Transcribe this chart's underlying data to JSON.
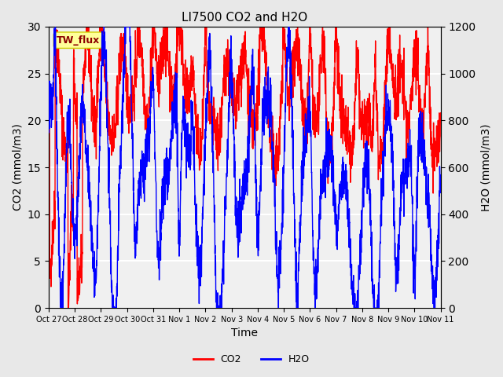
{
  "title": "LI7500 CO2 and H2O",
  "xlabel": "Time",
  "ylabel_left": "CO2 (mmol/m3)",
  "ylabel_right": "H2O (mmol/m3)",
  "annotation": "TW_flux",
  "ylim_left": [
    0,
    30
  ],
  "ylim_right": [
    0,
    1200
  ],
  "yticks_left": [
    0,
    5,
    10,
    15,
    20,
    25,
    30
  ],
  "yticks_right": [
    0,
    200,
    400,
    600,
    800,
    1000,
    1200
  ],
  "xtick_labels": [
    "Oct 27",
    "Oct 28",
    "Oct 29",
    "Oct 30",
    "Oct 31",
    "Nov 1",
    "Nov 2",
    "Nov 3",
    "Nov 4",
    "Nov 5",
    "Nov 6",
    "Nov 7",
    "Nov 8",
    "Nov 9",
    "Nov 10",
    "Nov 11"
  ],
  "co2_color": "#ff0000",
  "h2o_color": "#0000ff",
  "background_color": "#e8e8e8",
  "plot_bg_color": "#f0f0f0",
  "annotation_bg": "#ffff99",
  "annotation_border": "#cccc00",
  "linewidth": 1.0,
  "legend_co2": "CO2",
  "legend_h2o": "H2O",
  "seed": 42
}
